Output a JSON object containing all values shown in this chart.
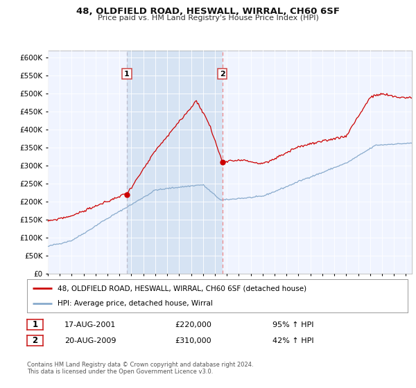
{
  "title": "48, OLDFIELD ROAD, HESWALL, WIRRAL, CH60 6SF",
  "subtitle": "Price paid vs. HM Land Registry's House Price Index (HPI)",
  "legend_line1": "48, OLDFIELD ROAD, HESWALL, WIRRAL, CH60 6SF (detached house)",
  "legend_line2": "HPI: Average price, detached house, Wirral",
  "footnote": "Contains HM Land Registry data © Crown copyright and database right 2024.\nThis data is licensed under the Open Government Licence v3.0.",
  "sale1_date": "17-AUG-2001",
  "sale1_price": "£220,000",
  "sale1_hpi": "95% ↑ HPI",
  "sale2_date": "20-AUG-2009",
  "sale2_price": "£310,000",
  "sale2_hpi": "42% ↑ HPI",
  "ylim": [
    0,
    620000
  ],
  "yticks": [
    0,
    50000,
    100000,
    150000,
    200000,
    250000,
    300000,
    350000,
    400000,
    450000,
    500000,
    550000,
    600000
  ],
  "red_line_color": "#cc0000",
  "blue_line_color": "#88aacc",
  "vline1_color": "#bbbbcc",
  "vline2_color": "#ee8888",
  "shade_color": "#ddeeff",
  "plot_bg": "#f0f4ff",
  "marker1_x": 2001.625,
  "marker2_x": 2009.625,
  "sale1_y": 220000,
  "sale2_y": 310000,
  "xmin": 1995,
  "xmax": 2025.5
}
